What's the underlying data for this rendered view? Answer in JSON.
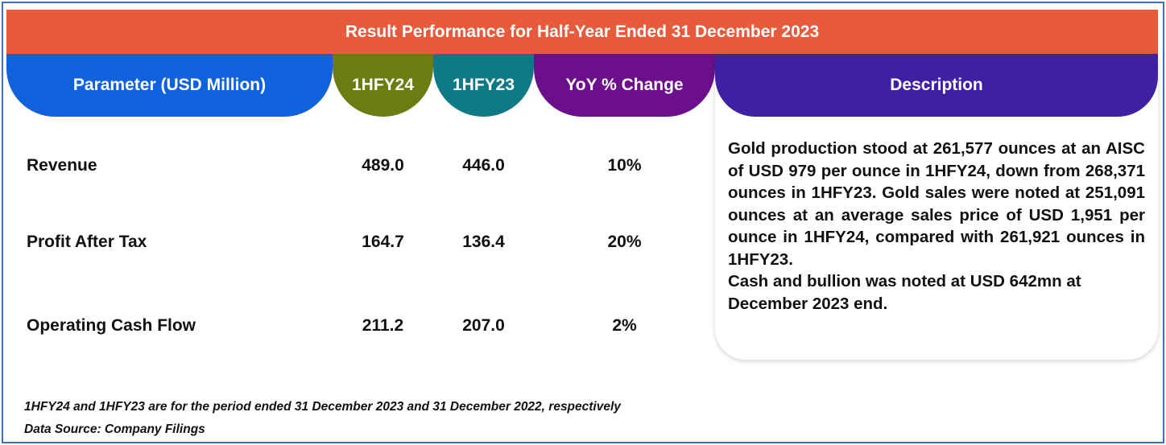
{
  "title": "Result Performance for Half-Year Ended 31 December 2023",
  "headers": {
    "parameter": "Parameter (USD Million)",
    "h24": "1HFY24",
    "h23": "1HFY23",
    "yoy": "YoY % Change",
    "description": "Description"
  },
  "rows": [
    {
      "parameter": "Revenue",
      "h24": "489.0",
      "h23": "446.0",
      "yoy": "10%"
    },
    {
      "parameter": "Profit After Tax",
      "h24": "164.7",
      "h23": "136.4",
      "yoy": "20%"
    },
    {
      "parameter": "Operating Cash Flow",
      "h24": "211.2",
      "h23": "207.0",
      "yoy": "2%"
    }
  ],
  "description": {
    "paragraph1": "Gold production stood at 261,577 ounces at an AISC of USD 979 per ounce in 1HFY24, down from 268,371 ounces in 1HFY23. Gold sales were noted at 251,091 ounces at an average sales price of USD 1,951 per ounce in 1HFY24, compared with 261,921 ounces in 1HFY23.",
    "paragraph2": "Cash and bullion was noted at USD 642mn at December 2023 end."
  },
  "footnote": "1HFY24 and 1HFY23 are for the period ended 31 December 2023 and 31 December 2022, respectively",
  "source": "Data Source: Company Filings",
  "colors": {
    "title_bar": "#e85a3c",
    "parameter_header": "#0f62dc",
    "h24_header": "#6b7d10",
    "h23_header": "#0f7a86",
    "yoy_header": "#6b0f8a",
    "description_header": "#3f1fa3",
    "frame_border": "#3d6fb4"
  }
}
